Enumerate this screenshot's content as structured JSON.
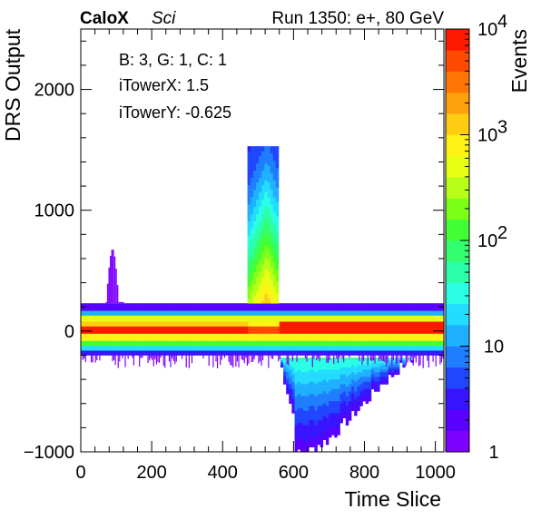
{
  "header": {
    "experiment": "CaloX",
    "detector": "Sci",
    "run_info": "Run 1350: e+, 80 GeV"
  },
  "info_box": {
    "line1": "B: 3, G: 1, C: 1",
    "line2": "iTowerX: 1.5",
    "line3": "iTowerY: -0.625"
  },
  "chart_data": {
    "type": "heatmap",
    "xlabel": "Time Slice",
    "ylabel": "DRS Output",
    "zlabel": "Events",
    "xlim": [
      0,
      1024
    ],
    "ylim": [
      -1000,
      2500
    ],
    "zlim": [
      1,
      10000
    ],
    "z_log_scale": true,
    "x_ticks": [
      "0",
      "200",
      "400",
      "600",
      "800",
      "1000"
    ],
    "y_ticks": [
      "−1000",
      "0",
      "1000",
      "2000"
    ],
    "z_tick_labels": [
      "1",
      "10"
    ],
    "z_tick_exponents": [
      {
        "base": "10",
        "exp": "2",
        "value": 100
      },
      {
        "base": "10",
        "exp": "3",
        "value": 1000
      },
      {
        "base": "10",
        "exp": "4",
        "value": 10000
      }
    ],
    "pedestal_bands": [
      {
        "y0": -200,
        "y1": -160,
        "z": 3
      },
      {
        "y0": -160,
        "y1": -120,
        "z": 25
      },
      {
        "y0": -120,
        "y1": -80,
        "z": 150
      },
      {
        "y0": -80,
        "y1": -20,
        "z": 800
      },
      {
        "y0": -20,
        "y1": 40,
        "z": 8000
      },
      {
        "y0": 40,
        "y1": 80,
        "z": 1500
      },
      {
        "y0": 80,
        "y1": 130,
        "z": 400
      },
      {
        "y0": 130,
        "y1": 170,
        "z": 12
      },
      {
        "y0": 170,
        "y1": 230,
        "z": 2.5
      }
    ],
    "pulse": {
      "peak_x": 520,
      "plateau_x": [
        470,
        555
      ],
      "max_y": 1520,
      "undershoot_x_range": [
        555,
        960
      ],
      "undershoot_min_y": -1000,
      "early_bump_x": [
        70,
        120
      ],
      "early_bump_max_y": 680
    },
    "palette": [
      "#7e00ff",
      "#5a00ff",
      "#3814ff",
      "#2046ff",
      "#1f7eff",
      "#1fb0ff",
      "#23dcff",
      "#2affe6",
      "#2cffaa",
      "#33ff6e",
      "#43ff35",
      "#7dff1a",
      "#b7ff16",
      "#e8ff14",
      "#fff215",
      "#ffcc11",
      "#ffa10c",
      "#ff7607",
      "#ff4a03",
      "#ff1a00"
    ]
  }
}
